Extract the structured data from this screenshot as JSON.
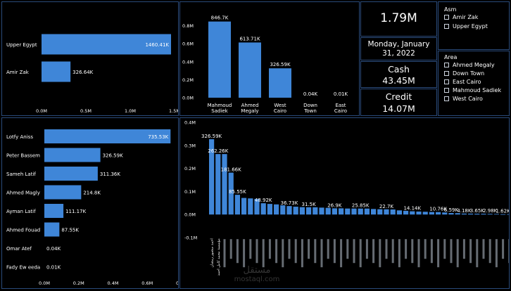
{
  "chart_data": [
    {
      "id": "chart_region_sales",
      "type": "bar",
      "orientation": "horizontal",
      "categories": [
        "Upper Egypt",
        "Amir Zak"
      ],
      "values": [
        1460.41,
        326.64
      ],
      "value_labels": [
        "1460.41K",
        "326.64K"
      ],
      "xlim": [
        0,
        1500
      ],
      "ticks": [
        0,
        500,
        1000,
        1500
      ],
      "tick_labels": [
        "0.0M",
        "0.5M",
        "1.0M",
        "1.5M"
      ],
      "color": "#3f86d8"
    },
    {
      "id": "chart_area_sales",
      "type": "bar",
      "categories": [
        "Mahmoud Sadiek",
        "Ahmed Megaly",
        "West Cairo",
        "Down Town",
        "East Cairo"
      ],
      "values": [
        846.7,
        613.71,
        326.59,
        0.04,
        0.01
      ],
      "value_labels": [
        "846.7K",
        "613.71K",
        "326.59K",
        "0.04K",
        "0.01K"
      ],
      "ylim": [
        0,
        1000
      ],
      "ticks": [
        0,
        200,
        400,
        600,
        800
      ],
      "tick_labels": [
        "0.0M",
        "0.2M",
        "0.4M",
        "0.6M",
        "0.8M"
      ],
      "color": "#3f86d8"
    },
    {
      "id": "chart_sales_rep",
      "type": "bar",
      "orientation": "horizontal",
      "categories": [
        "Lotfy Aniss",
        "Peter Bassem",
        "Sameh Latif",
        "Ahmed Magly",
        "Ayman Latif",
        "Ahmed Fouad",
        "Omar Atef",
        "Fady Ew eeda"
      ],
      "values": [
        735.53,
        326.59,
        311.36,
        214.8,
        111.17,
        87.55,
        0.04,
        0.01
      ],
      "value_labels": [
        "735.53K",
        "326.59K",
        "311.36K",
        "214.8K",
        "111.17K",
        "87.55K",
        "0.04K",
        "0.01K"
      ],
      "xlim": [
        0,
        800
      ],
      "ticks": [
        0,
        200,
        400,
        600,
        800
      ],
      "tick_labels": [
        "0.0M",
        "0.2M",
        "0.4M",
        "0.6M",
        "0.8M"
      ],
      "color": "#3f86d8"
    },
    {
      "id": "chart_customers",
      "type": "bar",
      "ylim": [
        -100,
        400
      ],
      "ticks": [
        -100,
        0,
        100,
        200,
        300,
        400
      ],
      "tick_labels": [
        "-0.1M",
        "0.0M",
        "0.1M",
        "0.2M",
        "0.3M",
        "0.4M"
      ],
      "values": [
        326.59,
        262.26,
        262.26,
        181.66,
        85.55,
        72,
        70,
        68,
        48.92,
        46,
        44,
        40,
        36.73,
        34,
        32,
        31.5,
        31.5,
        30,
        29,
        26.9,
        26.9,
        26,
        26,
        25.85,
        25.85,
        24,
        23,
        22.7,
        22,
        18,
        16,
        14.14,
        13,
        12,
        11,
        10.76,
        9,
        6.59,
        6,
        4.18,
        4,
        3.65,
        3.5,
        2.98,
        2.5,
        1.62,
        1.62
      ],
      "value_labels": [
        "326.59K",
        "262.26K",
        "",
        "181.66K",
        "85.55K",
        "",
        "",
        "",
        "48.92K",
        "",
        "",
        "",
        "36.73K",
        "",
        "",
        "31.5K",
        "",
        "",
        "",
        "26.9K",
        "",
        "",
        "",
        "25.85K",
        "",
        "",
        "",
        "22.7K",
        "",
        "",
        "",
        "14.14K",
        "",
        "",
        "",
        "10.76K",
        "",
        "6.59K",
        "",
        "4.18K",
        "",
        "3.65K",
        "",
        "2.98K",
        "",
        "1.62K",
        ""
      ],
      "categories": [
        "احمد منصور رمضان",
        "مؤسسة محمد كامل احمد",
        "",
        "",
        "",
        "",
        "",
        "",
        "",
        "",
        "",
        "",
        "",
        "",
        "",
        "",
        "",
        "",
        "",
        "",
        "",
        "",
        "",
        "",
        "",
        "",
        "",
        "",
        "",
        "",
        "",
        "",
        "",
        "",
        "",
        "",
        "",
        "",
        "",
        "",
        "",
        "",
        "",
        "",
        "",
        "",
        ""
      ],
      "color": "#3f86d8"
    }
  ],
  "cards": {
    "total_sales": "1.79M",
    "date": "Monday, January 31, 2022",
    "cash_label": "Cash",
    "cash_value": "43.45M",
    "credit_label": "Credit",
    "credit_value": "14.07M"
  },
  "slicer_asm": {
    "title": "Asm",
    "items": [
      "Amir Zak",
      "Upper Egypt"
    ]
  },
  "slicer_area": {
    "title": "Area",
    "items": [
      "Ahmed Megaly",
      "Down Town",
      "East Cairo",
      "Mahmoud Sadiek",
      "West Cairo"
    ]
  },
  "watermark": {
    "line1": "مستقل",
    "line2": "mostaql.com"
  }
}
